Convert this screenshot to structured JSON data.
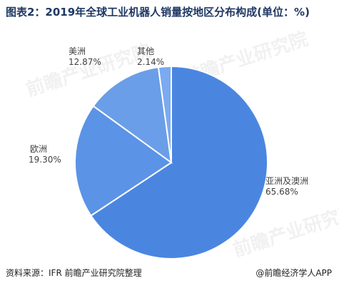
{
  "title": "图表2：2019年全球工业机器人销量按地区分布构成(单位：%)",
  "source": "资料来源：IFR 前瞻产业研究院整理",
  "brand": "@前瞻经济学人APP",
  "watermark": "前瞻产业研究院",
  "colors": {
    "title": "#1f3864",
    "slice_edge": "#ffffff"
  },
  "chart_data": {
    "type": "pie",
    "title": "图表2：2019年全球工业机器人销量按地区分布构成(单位：%)",
    "unit": "%",
    "slices": [
      {
        "label": "亚洲及澳洲",
        "value": 65.68,
        "value_text": "65.68%",
        "color": "#4a86e0"
      },
      {
        "label": "欧洲",
        "value": 19.3,
        "value_text": "19.30%",
        "color": "#5b93e6"
      },
      {
        "label": "美洲",
        "value": 12.87,
        "value_text": "12.87%",
        "color": "#6a9ee8"
      },
      {
        "label": "其他",
        "value": 2.14,
        "value_text": "2.14%",
        "color": "#7aaaf0"
      }
    ]
  }
}
